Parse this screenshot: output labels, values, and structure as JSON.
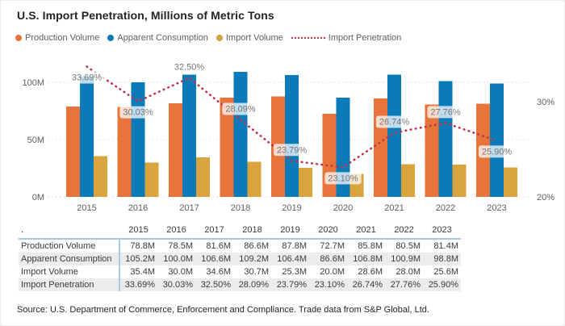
{
  "title": "U.S. Import Penetration, Millions of Metric Tons",
  "legend": [
    {
      "label": "Production Volume",
      "marker": "dot",
      "color": "#E8743B"
    },
    {
      "label": "Apparent Consumption",
      "marker": "dot",
      "color": "#0B7AB8"
    },
    {
      "label": "Import Volume",
      "marker": "dot",
      "color": "#D9A33D"
    },
    {
      "label": "Import Penetration",
      "marker": "dotted-line",
      "color": "#C2344B"
    }
  ],
  "chart_data": {
    "type": "combo",
    "title": "U.S. Import Penetration, Millions of Metric Tons",
    "categories": [
      "2015",
      "2016",
      "2017",
      "2018",
      "2019",
      "2020",
      "2021",
      "2022",
      "2023"
    ],
    "series": [
      {
        "name": "Production Volume",
        "type": "bar",
        "color": "#E8743B",
        "values": [
          78.8,
          78.5,
          81.6,
          86.6,
          87.8,
          72.7,
          85.8,
          80.5,
          81.4
        ]
      },
      {
        "name": "Apparent Consumption",
        "type": "bar",
        "color": "#0B7AB8",
        "values": [
          105.2,
          100.0,
          106.6,
          109.2,
          106.4,
          86.6,
          106.8,
          100.9,
          98.8
        ]
      },
      {
        "name": "Import Volume",
        "type": "bar",
        "color": "#D9A33D",
        "values": [
          35.4,
          30.0,
          34.6,
          30.7,
          25.3,
          20.0,
          28.6,
          28.0,
          25.6
        ]
      },
      {
        "name": "Import Penetration",
        "type": "line",
        "style": "dotted",
        "axis": "secondary",
        "color": "#C2344B",
        "values": [
          33.69,
          30.03,
          32.5,
          28.09,
          23.79,
          23.1,
          26.74,
          27.76,
          25.9
        ],
        "point_labels": [
          "33.69%",
          "30.03%",
          "32.50%",
          "28.09%",
          "23.79%",
          "23.10%",
          "26.74%",
          "27.76%",
          "25.90%"
        ]
      }
    ],
    "y_axis_primary": {
      "unit": "M",
      "tick_labels": [
        "0M",
        "50M",
        "100M"
      ],
      "tick_values": [
        0,
        50,
        100
      ],
      "range": [
        0,
        129
      ]
    },
    "y_axis_secondary": {
      "unit": "%",
      "tick_labels": [
        "20%",
        "30%"
      ],
      "tick_values": [
        20,
        30
      ],
      "range": [
        20,
        35.5
      ]
    },
    "grid": true,
    "legend_position": "top"
  },
  "table": {
    "corner_label": ".",
    "columns": [
      "2015",
      "2016",
      "2017",
      "2018",
      "2019",
      "2020",
      "2021",
      "2022",
      "2023"
    ],
    "rows": [
      {
        "label": "Production Volume",
        "values": [
          "78.8M",
          "78.5M",
          "81.6M",
          "86.6M",
          "87.8M",
          "72.7M",
          "85.8M",
          "80.5M",
          "81.4M"
        ]
      },
      {
        "label": "Apparent Consumption",
        "values": [
          "105.2M",
          "100.0M",
          "106.6M",
          "109.2M",
          "106.4M",
          "86.6M",
          "106.8M",
          "100.9M",
          "98.8M"
        ]
      },
      {
        "label": "Import Volume",
        "values": [
          "35.4M",
          "30.0M",
          "34.6M",
          "30.7M",
          "25.3M",
          "20.0M",
          "28.6M",
          "28.0M",
          "25.6M"
        ]
      },
      {
        "label": "Import Penetration",
        "values": [
          "33.69%",
          "30.03%",
          "32.50%",
          "28.09%",
          "23.79%",
          "23.10%",
          "26.74%",
          "27.76%",
          "25.90%"
        ]
      }
    ]
  },
  "source_note": "Source: U.S. Department of Commerce, Enforcement and Compliance. Trade data from S&P Global, Ltd."
}
